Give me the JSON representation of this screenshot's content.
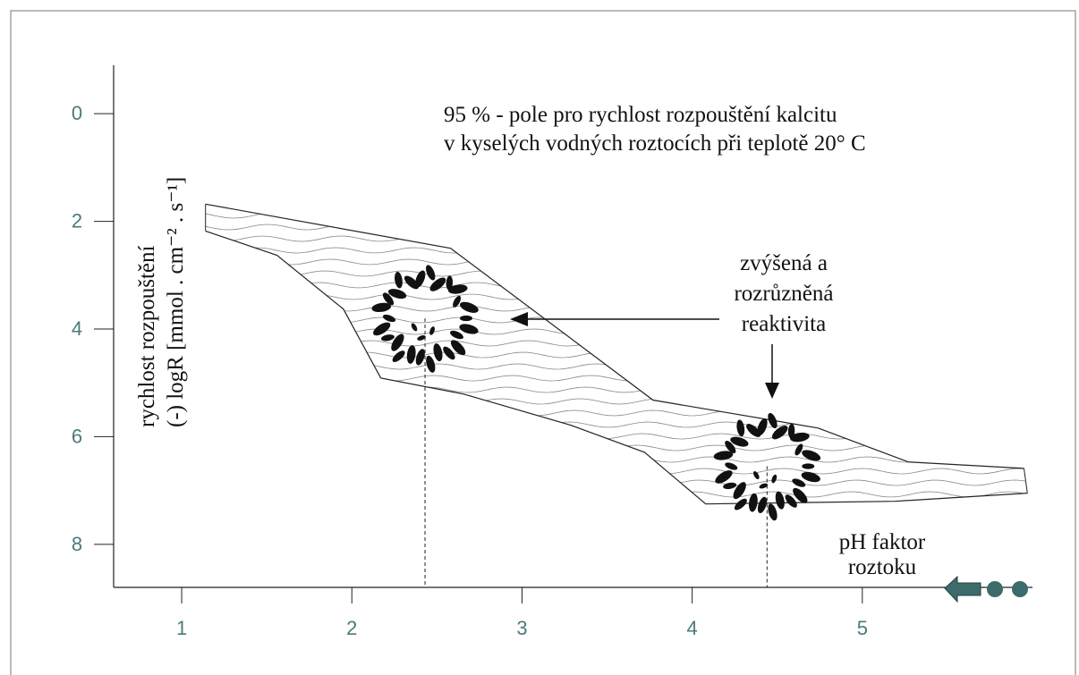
{
  "chart_data": {
    "type": "band",
    "title": [
      "95 % - pole pro rychlost rozpouštění kalcitu",
      "v kyselých vodných roztocích při teplotě 20° C"
    ],
    "y_label": [
      "rychlost rozpouštění",
      "(-) logR [mmol . cm⁻² . s⁻¹]"
    ],
    "x_label": [
      "pH faktor",
      "roztoku"
    ],
    "annotation": [
      "zvýšená a",
      "rozrůzněná",
      "reaktivita"
    ],
    "xlim": [
      0.6,
      6.0
    ],
    "xticks": [
      1,
      2,
      3,
      4,
      5
    ],
    "ylim": [
      -0.9,
      8.8
    ],
    "yticks": [
      0,
      2,
      4,
      6,
      8
    ],
    "y_inverted": true,
    "series": [
      {
        "x": [
          1.14,
          2.58,
          3.77,
          4.74,
          5.27,
          5.95
        ],
        "values": [
          1.68,
          2.5,
          5.32,
          5.84,
          6.47,
          6.59
        ]
      },
      {
        "x": [
          1.14,
          1.56,
          1.95,
          2.17,
          2.66,
          3.29,
          3.72,
          4.08,
          5.19,
          5.97
        ],
        "values": [
          2.18,
          2.63,
          3.63,
          4.91,
          5.21,
          5.79,
          6.29,
          7.25,
          7.2,
          7.05
        ]
      }
    ],
    "highlights": [
      {
        "x": 2.43,
        "y": 3.8
      },
      {
        "x": 4.44,
        "y": 6.55
      }
    ]
  }
}
